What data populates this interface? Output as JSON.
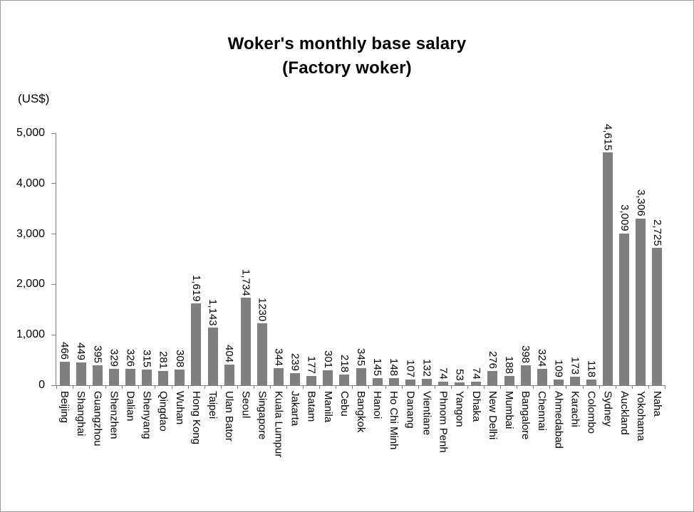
{
  "chart_data": {
    "type": "bar",
    "title_lines": [
      "Woker's monthly base salary",
      "(Factory woker)"
    ],
    "unit_label": "(US$)",
    "categories": [
      "Beijing",
      "Shanghai",
      "Guangzhou",
      "Shenzhen",
      "Dalian",
      "Shenyang",
      "Qingdao",
      "Wuhan",
      "Hong Kong",
      "Taipei",
      "Ulan Bator",
      "Seoul",
      "Singapore",
      "Kuala Lumpur",
      "Jakarta",
      "Batam",
      "Manila",
      "Cebu",
      "Bangkok",
      "Hanoi",
      "Ho Chi Minh",
      "Danang",
      "Vientiane",
      "Phnom Penh",
      "Yangon",
      "Dhaka",
      "New Delhi",
      "Mumbai",
      "Bangalore",
      "Chennai",
      "Ahmedabad",
      "Karachi",
      "Colombo",
      "Sydney",
      "Auckland",
      "Yokohama",
      "Naha"
    ],
    "values": [
      466,
      449,
      395,
      329,
      326,
      315,
      281,
      308,
      1619,
      1143,
      404,
      1734,
      1230,
      344,
      239,
      177,
      301,
      218,
      345,
      145,
      148,
      107,
      132,
      74,
      53,
      74,
      276,
      188,
      398,
      324,
      109,
      173,
      118,
      4615,
      3009,
      3306,
      2725
    ],
    "value_labels": [
      "466",
      "449",
      "395",
      "329",
      "326",
      "315",
      "281",
      "308",
      "1,619",
      "1,143",
      "404",
      "1,734",
      "1230",
      "344",
      "239",
      "177",
      "301",
      "218",
      "345",
      "145",
      "148",
      "107",
      "132",
      "74",
      "53",
      "74",
      "276",
      "188",
      "398",
      "324",
      "109",
      "173",
      "118",
      "4,615",
      "3,009",
      "3,306",
      "2,725"
    ],
    "yticks": [
      {
        "label": "5,000",
        "value": 5000
      },
      {
        "label": "4,000",
        "value": 4000
      },
      {
        "label": "3,000",
        "value": 3000
      },
      {
        "label": "2,000",
        "value": 2000
      },
      {
        "label": "1,000",
        "value": 1000
      },
      {
        "label": "0",
        "value": 0
      }
    ],
    "ylim": [
      0,
      5000
    ],
    "xlabel": "",
    "ylabel": "(US$)",
    "grid": "off",
    "legend": "none",
    "bar_color": "#7f7f7f",
    "axis_color": "#808080",
    "text_color": "#000000"
  }
}
